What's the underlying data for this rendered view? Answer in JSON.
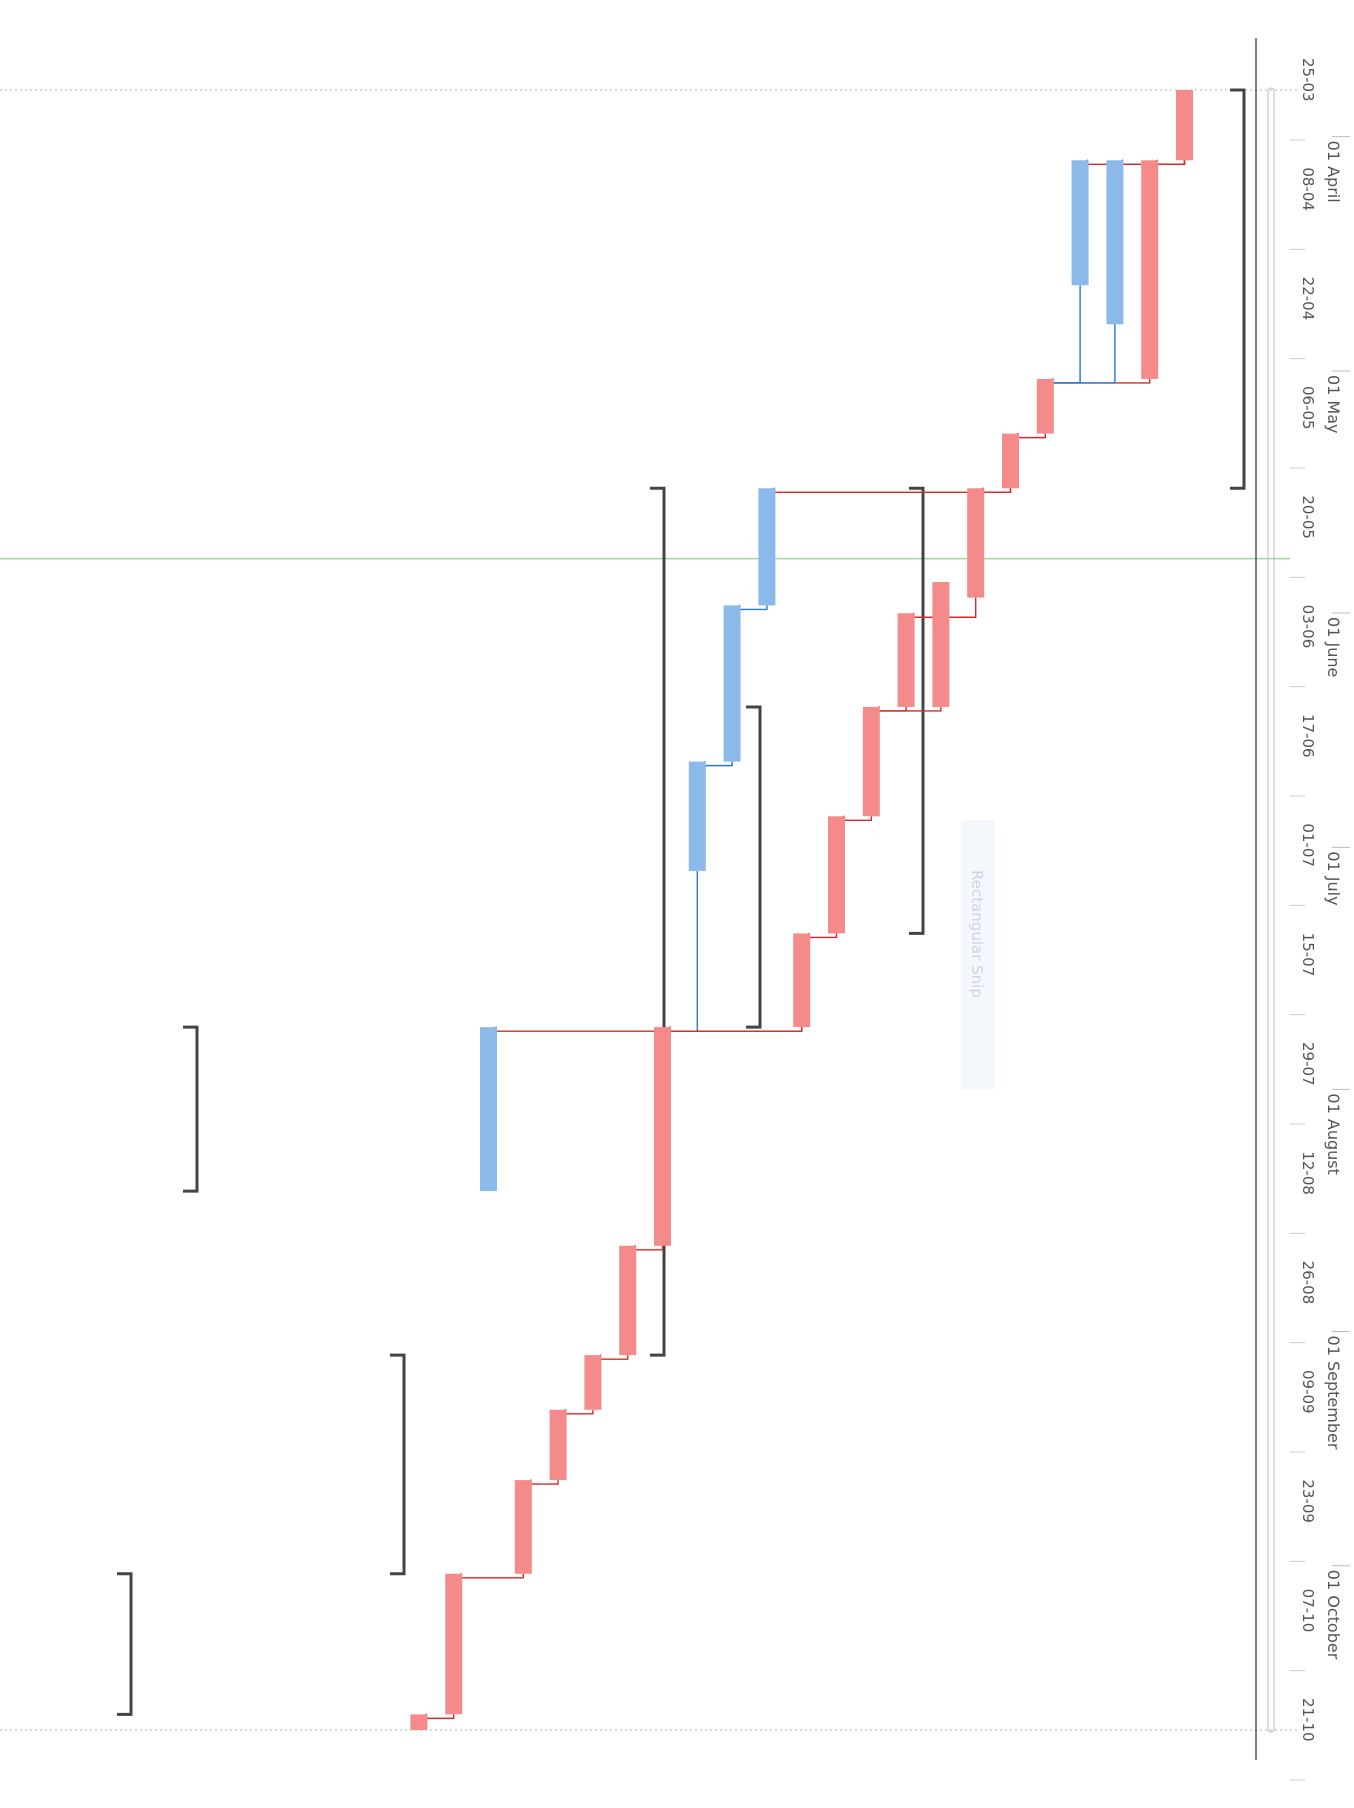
{
  "colors": {
    "critical": "#f48a8a",
    "critical_link": "#d42a2a",
    "normal": "#8ab9ea",
    "normal_link": "#2a77d4",
    "summary": "#444444",
    "today_line": "#9fd49f",
    "axis": "#555555"
  },
  "overlay": {
    "label": "Rectangular Snip"
  },
  "chart_data": {
    "type": "gantt",
    "x_axis": {
      "start": "2024-03-25",
      "end": "2024-10-21",
      "week_ticks": [
        "25-03",
        "08-04",
        "22-04",
        "06-05",
        "20-05",
        "03-06",
        "17-06",
        "01-07",
        "15-07",
        "29-07",
        "12-08",
        "26-08",
        "09-09",
        "23-09",
        "07-10",
        "21-10"
      ],
      "months": [
        "01 April",
        "01 May",
        "01 June",
        "01 July",
        "01 August",
        "01 September",
        "01 October"
      ]
    },
    "today": "2024-05-24",
    "tasks": [
      {
        "row": 1,
        "start": "2024-03-25",
        "end": "2024-04-03",
        "critical": true
      },
      {
        "row": 2,
        "start": "2024-04-03",
        "end": "2024-05-01",
        "critical": true
      },
      {
        "row": 3,
        "start": "2024-04-03",
        "end": "2024-04-24",
        "critical": false
      },
      {
        "row": 4,
        "start": "2024-04-03",
        "end": "2024-04-19",
        "critical": false
      },
      {
        "row": 5,
        "start": "2024-05-01",
        "end": "2024-05-08",
        "critical": true
      },
      {
        "row": 6,
        "start": "2024-05-08",
        "end": "2024-05-15",
        "critical": true
      },
      {
        "row": 7,
        "start": "2024-05-15",
        "end": "2024-05-29",
        "critical": true
      },
      {
        "row": 8,
        "start": "2024-05-27",
        "end": "2024-06-12",
        "critical": true
      },
      {
        "row": 9,
        "start": "2024-05-31",
        "end": "2024-06-12",
        "critical": true
      },
      {
        "row": 10,
        "start": "2024-06-12",
        "end": "2024-06-26",
        "critical": true
      },
      {
        "row": 11,
        "start": "2024-06-26",
        "end": "2024-07-11",
        "critical": true
      },
      {
        "row": 12,
        "start": "2024-07-11",
        "end": "2024-07-23",
        "critical": true
      },
      {
        "row": 13,
        "start": "2024-05-15",
        "end": "2024-05-30",
        "critical": false
      },
      {
        "row": 14,
        "start": "2024-05-30",
        "end": "2024-06-19",
        "critical": false
      },
      {
        "row": 15,
        "start": "2024-06-19",
        "end": "2024-07-03",
        "critical": false
      },
      {
        "row": 16,
        "start": "2024-07-23",
        "end": "2024-08-20",
        "critical": true
      },
      {
        "row": 17,
        "start": "2024-08-20",
        "end": "2024-09-03",
        "critical": true
      },
      {
        "row": 18,
        "start": "2024-09-03",
        "end": "2024-09-10",
        "critical": true
      },
      {
        "row": 19,
        "start": "2024-09-10",
        "end": "2024-09-19",
        "critical": true
      },
      {
        "row": 20,
        "start": "2024-09-19",
        "end": "2024-10-01",
        "critical": true
      },
      {
        "row": 21,
        "start": "2024-07-23",
        "end": "2024-08-13",
        "critical": false
      },
      {
        "row": 22,
        "start": "2024-10-01",
        "end": "2024-10-19",
        "critical": true
      },
      {
        "row": 23,
        "start": "2024-10-19",
        "end": "2024-10-21",
        "critical": true
      }
    ],
    "summaries": [
      {
        "start": "2024-03-25",
        "end": "2024-05-15"
      },
      {
        "start": "2024-05-15",
        "end": "2024-07-11"
      },
      {
        "start": "2024-06-12",
        "end": "2024-07-23"
      },
      {
        "start": "2024-05-15",
        "end": "2024-09-03"
      },
      {
        "start": "2024-09-03",
        "end": "2024-10-01"
      },
      {
        "start": "2024-07-23",
        "end": "2024-08-13"
      },
      {
        "start": "2024-10-01",
        "end": "2024-10-19"
      }
    ],
    "links": [
      {
        "from": 1,
        "to": 2,
        "critical": true
      },
      {
        "from": 1,
        "to": 3,
        "critical": true
      },
      {
        "from": 1,
        "to": 4,
        "critical": true
      },
      {
        "from": 2,
        "to": 5,
        "critical": true
      },
      {
        "from": 3,
        "to": 5,
        "critical": false
      },
      {
        "from": 4,
        "to": 5,
        "critical": false
      },
      {
        "from": 5,
        "to": 6,
        "critical": true
      },
      {
        "from": 6,
        "to": 7,
        "critical": true
      },
      {
        "from": 7,
        "to": 9,
        "critical": true
      },
      {
        "from": 9,
        "to": 10,
        "critical": true
      },
      {
        "from": 8,
        "to": 10,
        "critical": true
      },
      {
        "from": 10,
        "to": 11,
        "critical": true
      },
      {
        "from": 11,
        "to": 12,
        "critical": true
      },
      {
        "from": 6,
        "to": 13,
        "critical": true
      },
      {
        "from": 13,
        "to": 14,
        "critical": false
      },
      {
        "from": 14,
        "to": 15,
        "critical": false
      },
      {
        "from": 15,
        "to": 16,
        "critical": false
      },
      {
        "from": 12,
        "to": 16,
        "critical": true
      },
      {
        "from": 16,
        "to": 17,
        "critical": true
      },
      {
        "from": 17,
        "to": 18,
        "critical": true
      },
      {
        "from": 18,
        "to": 19,
        "critical": true
      },
      {
        "from": 19,
        "to": 20,
        "critical": true
      },
      {
        "from": 12,
        "to": 21,
        "critical": true
      },
      {
        "from": 20,
        "to": 22,
        "critical": true
      },
      {
        "from": 22,
        "to": 23,
        "critical": true
      }
    ]
  }
}
